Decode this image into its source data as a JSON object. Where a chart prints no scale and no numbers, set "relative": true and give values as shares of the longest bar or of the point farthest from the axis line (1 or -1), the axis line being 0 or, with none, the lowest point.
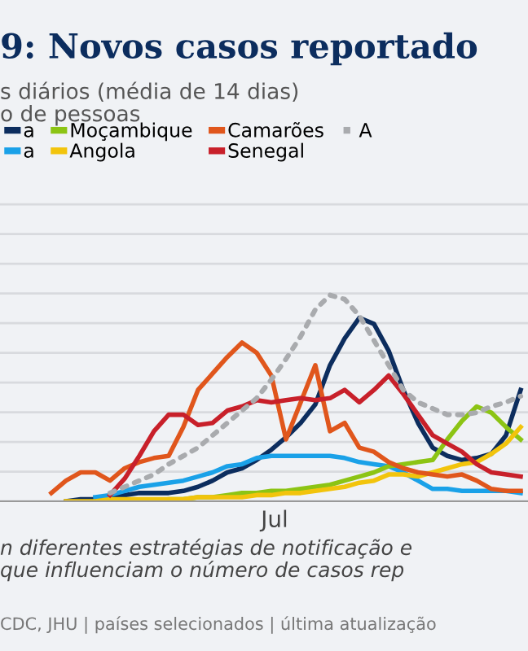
{
  "chart_data": {
    "type": "line",
    "title": "9: Novos casos reportado",
    "subtitle": "s diários (média de 14 dias)\no de pessoas",
    "categories": [
      null,
      null,
      null,
      null,
      null,
      null,
      null,
      null,
      null,
      null,
      null,
      null,
      null,
      null,
      null,
      null,
      null,
      null,
      null,
      null,
      null,
      null,
      null,
      null,
      null,
      null,
      null,
      null,
      null,
      null,
      null,
      null,
      null,
      null,
      null,
      null
    ],
    "relative": true,
    "grid": "y",
    "legend": "top",
    "series": [
      {
        "name": "a",
        "color": "#0c2d5e",
        "values": [
          null,
          null,
          null,
          null,
          0.0,
          0.01,
          0.01,
          0.02,
          0.03,
          0.04,
          0.04,
          0.04,
          0.05,
          0.07,
          0.1,
          0.14,
          0.16,
          0.2,
          0.25,
          0.31,
          0.38,
          0.47,
          0.66,
          0.79,
          0.89,
          0.86,
          0.73,
          0.54,
          0.38,
          0.26,
          0.22,
          0.2,
          0.21,
          0.23,
          0.32,
          0.54
        ]
      },
      {
        "name": "a",
        "color": "#1aa1e8",
        "values": [
          null,
          null,
          null,
          null,
          null,
          null,
          0.02,
          0.03,
          0.05,
          0.07,
          0.08,
          0.09,
          0.1,
          0.12,
          0.14,
          0.17,
          0.18,
          0.21,
          0.22,
          0.22,
          0.22,
          0.22,
          0.22,
          0.21,
          0.19,
          0.18,
          0.17,
          0.14,
          0.1,
          0.06,
          0.06,
          0.05,
          0.05,
          0.05,
          0.05,
          0.04
        ]
      },
      {
        "name": "Moçambique",
        "color": "#8cc414",
        "values": [
          null,
          null,
          null,
          null,
          null,
          null,
          null,
          null,
          null,
          null,
          0.0,
          0.01,
          0.01,
          0.02,
          0.02,
          0.03,
          0.04,
          0.04,
          0.05,
          0.05,
          0.06,
          0.07,
          0.08,
          0.1,
          0.12,
          0.14,
          0.17,
          0.18,
          0.19,
          0.2,
          0.3,
          0.39,
          0.46,
          0.43,
          0.36,
          0.3
        ]
      },
      {
        "name": "Angola",
        "color": "#f2c40c",
        "values": [
          null,
          null,
          null,
          null,
          0.0,
          0.0,
          0.0,
          0.01,
          0.01,
          0.01,
          0.01,
          0.01,
          0.01,
          0.02,
          0.02,
          0.02,
          0.02,
          0.03,
          0.03,
          0.04,
          0.04,
          0.05,
          0.06,
          0.07,
          0.09,
          0.1,
          0.13,
          0.13,
          0.12,
          0.14,
          0.16,
          0.18,
          0.19,
          0.23,
          0.28,
          0.36
        ]
      },
      {
        "name": "Camarões",
        "color": "#e0561c",
        "values": [
          null,
          null,
          null,
          0.04,
          0.1,
          0.14,
          0.14,
          0.1,
          0.16,
          0.19,
          0.21,
          0.22,
          0.36,
          0.54,
          0.62,
          0.7,
          0.77,
          0.72,
          0.61,
          0.3,
          0.48,
          0.66,
          0.34,
          0.38,
          0.26,
          0.24,
          0.19,
          0.16,
          0.14,
          0.13,
          0.12,
          0.13,
          0.1,
          0.06,
          0.05,
          0.05
        ]
      },
      {
        "name": "Senegal",
        "color": "#c8202a",
        "values": [
          null,
          null,
          null,
          null,
          null,
          null,
          null,
          0.03,
          0.11,
          0.22,
          0.34,
          0.42,
          0.42,
          0.37,
          0.38,
          0.44,
          0.46,
          0.49,
          0.48,
          0.49,
          0.5,
          0.49,
          0.5,
          0.54,
          0.48,
          0.54,
          0.61,
          0.52,
          0.42,
          0.32,
          0.28,
          0.24,
          0.18,
          0.14,
          0.13,
          0.12
        ]
      },
      {
        "name": "A",
        "color": "#a9abae",
        "line_style": "dotted",
        "values": [
          null,
          null,
          null,
          null,
          null,
          null,
          null,
          0.04,
          0.07,
          0.1,
          0.13,
          0.18,
          0.22,
          0.26,
          0.32,
          0.38,
          0.44,
          0.5,
          0.59,
          0.69,
          0.8,
          0.93,
          1.0,
          0.98,
          0.9,
          0.78,
          0.66,
          0.54,
          0.48,
          0.45,
          0.42,
          0.42,
          0.43,
          0.46,
          0.48,
          0.51
        ]
      }
    ],
    "annotations": [
      "Jul",
      "n diferentes estratégias de notificação e\nque influenciam o número de casos rep",
      "CDC, JHU | países selecionados | última atualização"
    ]
  }
}
